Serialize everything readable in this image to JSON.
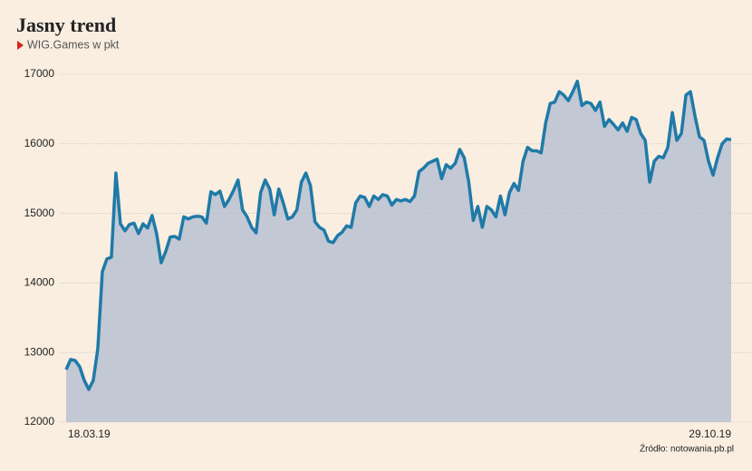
{
  "chart_data": {
    "type": "area",
    "title": "Jasny trend",
    "subtitle": "WIG.Games w pkt",
    "source": "Źródło: notowania.pb.pl",
    "categories": [
      "18.03.19",
      null,
      null,
      null,
      null,
      null,
      null,
      null,
      null,
      null,
      null,
      null,
      null,
      null,
      null,
      null,
      null,
      null,
      null,
      null,
      null,
      null,
      null,
      null,
      null,
      null,
      null,
      null,
      null,
      null,
      null,
      null,
      null,
      null,
      null,
      null,
      null,
      null,
      null,
      null,
      null,
      null,
      null,
      null,
      null,
      null,
      null,
      null,
      null,
      null,
      null,
      null,
      null,
      null,
      null,
      null,
      null,
      null,
      null,
      null,
      null,
      null,
      null,
      null,
      null,
      null,
      null,
      null,
      null,
      null,
      null,
      null,
      null,
      null,
      null,
      null,
      null,
      null,
      null,
      null,
      null,
      null,
      null,
      null,
      null,
      null,
      null,
      null,
      null,
      null,
      null,
      null,
      null,
      null,
      null,
      null,
      null,
      null,
      null,
      null,
      null,
      null,
      null,
      null,
      null,
      null,
      null,
      null,
      null,
      null,
      null,
      null,
      null,
      null,
      null,
      null,
      null,
      null,
      null,
      null,
      null,
      null,
      null,
      null,
      null,
      null,
      null,
      null,
      null,
      null,
      null,
      null,
      null,
      null,
      null,
      null,
      null,
      null,
      null,
      null,
      null,
      null,
      null,
      null,
      null,
      null,
      null,
      "29.10.19"
    ],
    "values": [
      12755,
      12900,
      12885,
      12795,
      12600,
      12470,
      12600,
      13055,
      14160,
      14345,
      14370,
      15580,
      14850,
      14750,
      14840,
      14860,
      14710,
      14850,
      14790,
      14970,
      14710,
      14290,
      14450,
      14660,
      14670,
      14630,
      14950,
      14920,
      14950,
      14960,
      14950,
      14860,
      15310,
      15270,
      15320,
      15100,
      15200,
      15330,
      15480,
      15050,
      14950,
      14800,
      14720,
      15300,
      15480,
      15350,
      14980,
      15350,
      15150,
      14920,
      14950,
      15050,
      15450,
      15580,
      15400,
      14880,
      14800,
      14760,
      14600,
      14580,
      14680,
      14730,
      14820,
      14800,
      15150,
      15250,
      15230,
      15100,
      15250,
      15200,
      15270,
      15250,
      15120,
      15200,
      15180,
      15200,
      15170,
      15250,
      15600,
      15650,
      15720,
      15750,
      15780,
      15500,
      15700,
      15650,
      15720,
      15920,
      15800,
      15450,
      14900,
      15100,
      14800,
      15100,
      15050,
      14950,
      15250,
      14980,
      15300,
      15430,
      15330,
      15750,
      15950,
      15900,
      15900,
      15870,
      16300,
      16580,
      16600,
      16750,
      16700,
      16620,
      16750,
      16900,
      16550,
      16600,
      16580,
      16480,
      16600,
      16250,
      16350,
      16280,
      16200,
      16300,
      16180,
      16380,
      16350,
      16150,
      16050,
      15450,
      15750,
      15820,
      15800,
      15950,
      16450,
      16050,
      16150,
      16700,
      16750,
      16400,
      16100,
      16050,
      15750,
      15550,
      15800,
      16000,
      16070,
      16060
    ],
    "color": "#1f7aa8",
    "fill_color": "#c3c8d5",
    "ylim": [
      12000,
      17000
    ],
    "yticks": [
      12000,
      13000,
      14000,
      15000,
      16000,
      17000
    ],
    "grid": true
  }
}
